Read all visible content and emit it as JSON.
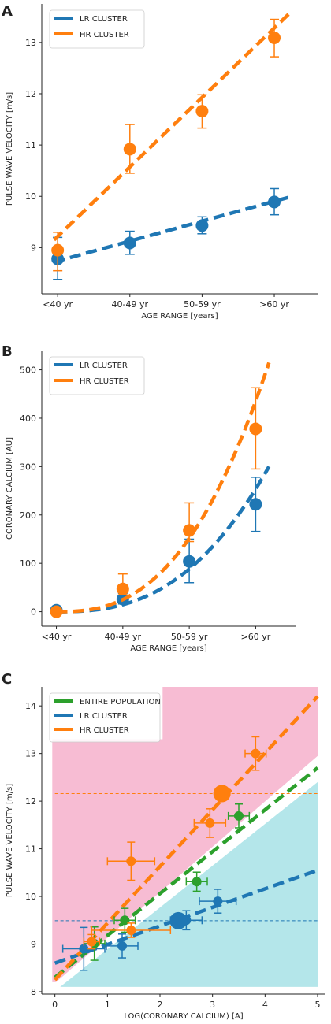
{
  "colors": {
    "lr": "#1f77b4",
    "hr": "#ff7f0e",
    "entire": "#2ca02c",
    "pink_region": "#f7bcd3",
    "cyan_region": "#b4e6ea"
  },
  "chart_data": [
    {
      "type": "line",
      "panel_letter": "A",
      "title": "",
      "xlabel": "AGE RANGE [years]",
      "ylabel": "PULSE WAVE VELOCITY [m/s]",
      "categories": [
        "<40 yr",
        "40-49 yr",
        "50-59 yr",
        ">60 yr"
      ],
      "ylim": [
        8.1,
        13.75
      ],
      "yticks": [
        "9",
        "10",
        "11",
        "12",
        "13"
      ],
      "grid": false,
      "legend_position": "top-left",
      "series": [
        {
          "name": "LR CLUSTER",
          "values": [
            8.78,
            9.09,
            9.43,
            9.89
          ],
          "err_low": [
            8.38,
            8.87,
            9.27,
            9.64
          ],
          "err_high": [
            9.2,
            9.32,
            9.6,
            10.15
          ],
          "fit": [
            [
              -0.05,
              8.72
            ],
            [
              3.25,
              10.0
            ]
          ]
        },
        {
          "name": "HR CLUSTER",
          "values": [
            8.95,
            10.92,
            11.66,
            13.09
          ],
          "err_low": [
            8.55,
            10.45,
            11.33,
            12.72
          ],
          "err_high": [
            9.3,
            11.4,
            11.98,
            13.45
          ],
          "fit": [
            [
              -0.05,
              9.15
            ],
            [
              3.25,
              13.62
            ]
          ]
        }
      ]
    },
    {
      "type": "line",
      "panel_letter": "B",
      "title": "",
      "xlabel": "AGE RANGE [years]",
      "ylabel": "CORONARY CALCIUM [AU]",
      "categories": [
        "<40 yr",
        "40-49 yr",
        "50-59 yr",
        ">60 yr"
      ],
      "ylim": [
        -30,
        540
      ],
      "yticks": [
        "0",
        "100",
        "200",
        "300",
        "400",
        "500"
      ],
      "grid": false,
      "legend_position": "top-left",
      "series": [
        {
          "name": "LR CLUSTER",
          "values": [
            3,
            26,
            104,
            222
          ],
          "err_low": [
            0,
            16,
            60,
            166
          ],
          "err_high": [
            6,
            38,
            150,
            278
          ],
          "fit_curve": {
            "x0": 0,
            "x1": 3.2,
            "y_start": 0,
            "y_end": 300
          }
        },
        {
          "name": "HR CLUSTER",
          "values": [
            0,
            47,
            168,
            378
          ],
          "err_low": [
            -5,
            35,
            145,
            295
          ],
          "err_high": [
            5,
            78,
            225,
            463
          ],
          "fit_curve": {
            "x0": 0,
            "x1": 3.2,
            "y_start": 0,
            "y_end": 515
          }
        }
      ]
    },
    {
      "type": "scatter",
      "panel_letter": "C",
      "title": "",
      "xlabel": "LOG(CORONARY CALCIUM) [A]",
      "ylabel": "PULSE WAVE VELOCITY [m/s]",
      "xlim": [
        -0.25,
        5.15
      ],
      "ylim": [
        7.95,
        14.4
      ],
      "xticks": [
        "0",
        "1",
        "2",
        "3",
        "4",
        "5"
      ],
      "yticks": [
        "8",
        "9",
        "10",
        "11",
        "12",
        "13",
        "14"
      ],
      "grid": false,
      "legend_position": "top-left",
      "regions": {
        "pink": [
          [
            -0.05,
            13.3
          ],
          [
            2.05,
            13.3
          ],
          [
            2.05,
            14.4
          ],
          [
            5.0,
            14.4
          ],
          [
            5.0,
            12.95
          ],
          [
            0.02,
            8.2
          ],
          [
            -0.05,
            8.2
          ]
        ],
        "cyan": [
          [
            0.1,
            8.1
          ],
          [
            5.0,
            8.1
          ],
          [
            5.0,
            12.4
          ]
        ]
      },
      "series": [
        {
          "name": "ENTIRE POPULATION",
          "fit": [
            [
              0.0,
              8.3
            ],
            [
              5.0,
              12.7
            ]
          ],
          "points": [
            {
              "x": 0.75,
              "y": 9.01,
              "xerr": 0.2,
              "yerr": 0.35
            },
            {
              "x": 1.33,
              "y": 9.5,
              "xerr": 0.2,
              "yerr": 0.25
            },
            {
              "x": 2.7,
              "y": 10.31,
              "xerr": 0.2,
              "yerr": 0.2
            },
            {
              "x": 3.5,
              "y": 11.69,
              "xerr": 0.2,
              "yerr": 0.25
            }
          ]
        },
        {
          "name": "LR CLUSTER",
          "fit": [
            [
              0.0,
              8.6
            ],
            [
              5.0,
              10.55
            ]
          ],
          "reference_line": 9.49,
          "mean_point": {
            "x": 2.35,
            "y": 9.49
          },
          "points": [
            {
              "x": 0.55,
              "y": 8.9,
              "xerr": 0.4,
              "yerr": 0.45
            },
            {
              "x": 1.28,
              "y": 8.96,
              "xerr": 0.3,
              "yerr": 0.25
            },
            {
              "x": 2.5,
              "y": 9.5,
              "xerr": 0.3,
              "yerr": 0.2
            },
            {
              "x": 3.1,
              "y": 9.9,
              "xerr": 0.35,
              "yerr": 0.25
            }
          ]
        },
        {
          "name": "HR CLUSTER",
          "fit": [
            [
              0.0,
              8.25
            ],
            [
              5.0,
              14.2
            ]
          ],
          "reference_line": 12.16,
          "mean_point": {
            "x": 3.18,
            "y": 12.16
          },
          "points": [
            {
              "x": 0.7,
              "y": 9.05,
              "xerr": 0.15,
              "yerr": 0.15
            },
            {
              "x": 1.45,
              "y": 9.29,
              "xerr": 0.75,
              "yerr": 0.15
            },
            {
              "x": 1.45,
              "y": 10.74,
              "xerr": 0.45,
              "yerr": 0.4
            },
            {
              "x": 2.95,
              "y": 11.54,
              "xerr": 0.3,
              "yerr": 0.3
            },
            {
              "x": 3.82,
              "y": 13.0,
              "xerr": 0.2,
              "yerr": 0.35
            }
          ]
        }
      ]
    }
  ]
}
